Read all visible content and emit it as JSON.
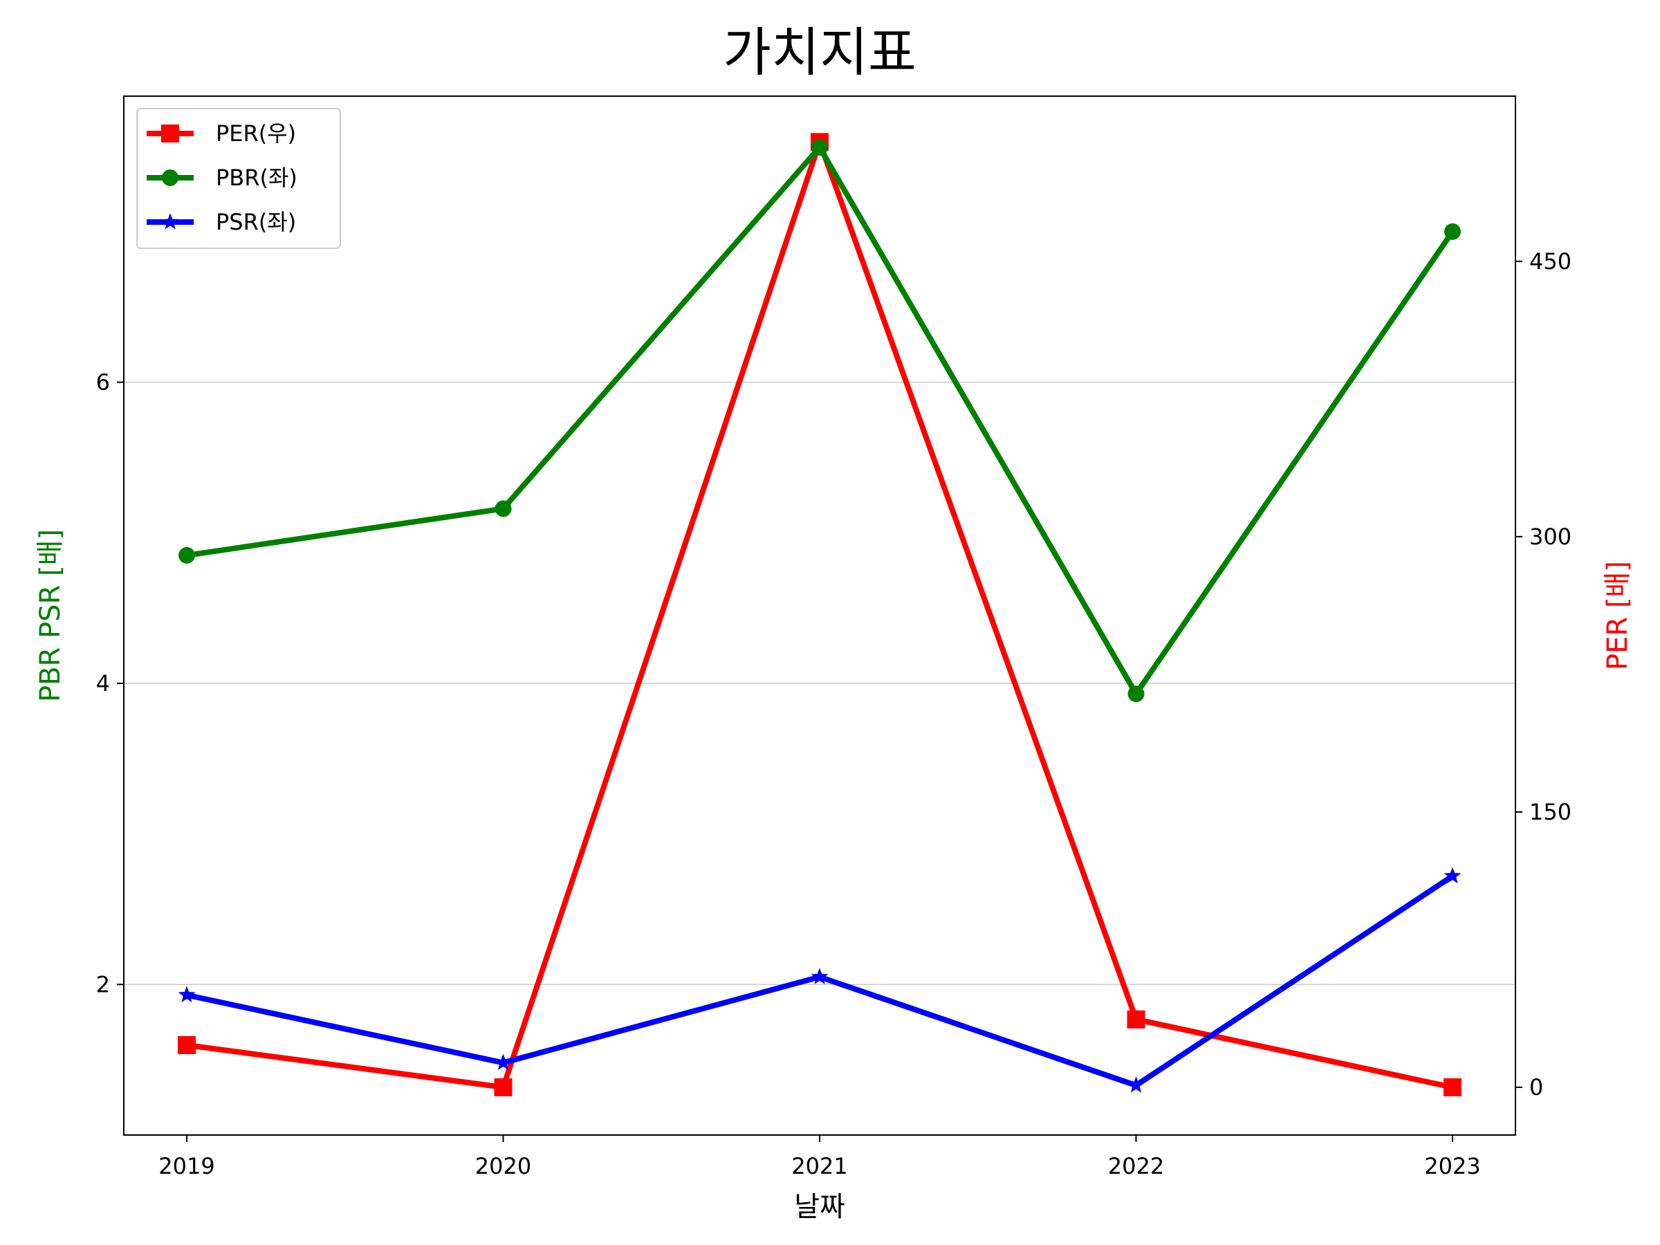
{
  "chart_data": {
    "type": "line",
    "title": "가치지표",
    "xlabel": "날짜",
    "ylabel_left": "PBR PSR [배]",
    "ylabel_right": "PER [배]",
    "ylabel_left_color": "#008000",
    "ylabel_right_color": "#ff0000",
    "categories": [
      "2019",
      "2020",
      "2021",
      "2022",
      "2023"
    ],
    "y_left": {
      "lim": [
        1.0,
        7.9
      ],
      "ticks": [
        2,
        4,
        6
      ],
      "tick_labels": [
        "2",
        "4",
        "6"
      ]
    },
    "y_right": {
      "lim": [
        -26,
        540
      ],
      "ticks": [
        0,
        150,
        300,
        450
      ],
      "tick_labels": [
        "0",
        "150",
        "300",
        "450"
      ]
    },
    "grid": "horizontal (left axis)",
    "legend_position": "upper-left",
    "series": [
      {
        "name": "PER(우)",
        "axis": "right",
        "color": "#ff0000",
        "marker": "square",
        "values": [
          23,
          0,
          515,
          37,
          0
        ]
      },
      {
        "name": "PBR(좌)",
        "axis": "left",
        "color": "#008000",
        "marker": "circle",
        "values": [
          4.85,
          5.16,
          7.56,
          3.93,
          7.0
        ]
      },
      {
        "name": "PSR(좌)",
        "axis": "left",
        "color": "#0000ff",
        "marker": "star",
        "values": [
          1.93,
          1.48,
          2.05,
          1.33,
          2.72
        ]
      }
    ]
  }
}
